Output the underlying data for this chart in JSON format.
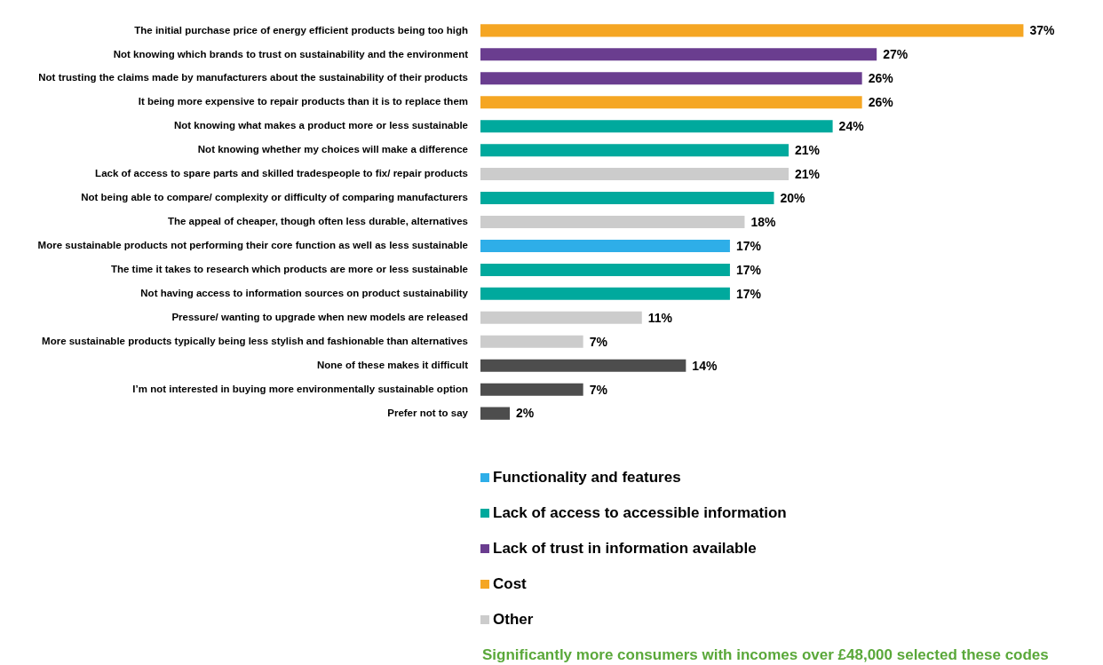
{
  "chart_data": {
    "type": "bar",
    "orientation": "horizontal",
    "stacked": true,
    "grid": false,
    "tick_labels": "y",
    "legend": "bottom",
    "categories": [
      "The initial purchase price of energy efficient products being too high",
      "Not knowing which brands to trust on sustainability and the environment",
      "Not trusting the claims made by manufacturers about the sustainability of their products",
      "It being more expensive to repair products than it is to replace them",
      "Not knowing what makes a product more or less sustainable",
      "Not knowing whether my choices will make a difference",
      "Lack of access to spare parts and skilled tradespeople to fix/ repair products",
      "Not being able to compare/ complexity or difficulty of comparing manufacturers",
      "The appeal of cheaper, though often less durable, alternatives",
      "More sustainable products not performing their core function as well as less sustainable",
      "The time it takes to research which products are more or less sustainable",
      "Not having access to information sources on product sustainability",
      "Pressure/ wanting to upgrade when new models are released",
      "More sustainable products typically being less stylish and fashionable than alternatives",
      "None of these makes it difficult",
      "I’m not interested in buying more environmentally sustainable option",
      "Prefer not to say"
    ],
    "series": [
      {
        "name": "Functionality and features",
        "color": "#2eaee8",
        "values": [
          null,
          null,
          null,
          null,
          null,
          null,
          null,
          null,
          null,
          17,
          null,
          null,
          null,
          null,
          null,
          null,
          null
        ],
        "value_labels": [
          null,
          null,
          null,
          null,
          null,
          null,
          null,
          null,
          null,
          "17%",
          null,
          null,
          null,
          null,
          null,
          null,
          null
        ]
      },
      {
        "name": "Lack of access to accessible information",
        "color": "#00a99d",
        "values": [
          null,
          null,
          null,
          null,
          24,
          21,
          null,
          20,
          null,
          null,
          17,
          17,
          null,
          null,
          null,
          null,
          null
        ],
        "value_labels": [
          null,
          null,
          null,
          null,
          "24%",
          "21%",
          null,
          "20%",
          null,
          null,
          "17%",
          "17%",
          null,
          null,
          null,
          null,
          null
        ]
      },
      {
        "name": "Lack of trust in information available",
        "color": "#6a3d8f",
        "values": [
          null,
          27,
          26,
          null,
          null,
          null,
          null,
          null,
          null,
          null,
          null,
          null,
          null,
          null,
          null,
          null,
          null
        ],
        "value_labels": [
          null,
          "27%",
          "26%",
          null,
          null,
          null,
          null,
          null,
          null,
          null,
          null,
          null,
          null,
          null,
          null,
          null,
          null
        ]
      },
      {
        "name": "Cost",
        "color": "#f5a623",
        "values": [
          37,
          null,
          null,
          26,
          null,
          null,
          null,
          null,
          null,
          null,
          null,
          null,
          null,
          null,
          null,
          null,
          null
        ],
        "value_labels": [
          "37%",
          null,
          null,
          "26%",
          null,
          null,
          null,
          null,
          null,
          null,
          null,
          null,
          null,
          null,
          null,
          null,
          null
        ]
      },
      {
        "name": "Other",
        "color": "#cccccc",
        "values": [
          null,
          null,
          null,
          null,
          null,
          null,
          21,
          null,
          18,
          null,
          null,
          null,
          11,
          7,
          null,
          null,
          null
        ],
        "value_labels": [
          null,
          null,
          null,
          null,
          null,
          null,
          "21%",
          null,
          "18%",
          null,
          null,
          null,
          "11%",
          "7%",
          null,
          null,
          null
        ]
      },
      {
        "color": "#4d4d4d",
        "values": [
          null,
          null,
          null,
          null,
          null,
          null,
          null,
          null,
          null,
          null,
          null,
          null,
          null,
          null,
          14,
          7,
          2
        ],
        "value_labels": [
          null,
          null,
          null,
          null,
          null,
          null,
          null,
          null,
          null,
          null,
          null,
          null,
          null,
          null,
          "14%",
          "7%",
          "2%"
        ]
      }
    ],
    "annotations": [
      "Significantly more consumers with incomes over £48,000 selected these codes"
    ]
  }
}
